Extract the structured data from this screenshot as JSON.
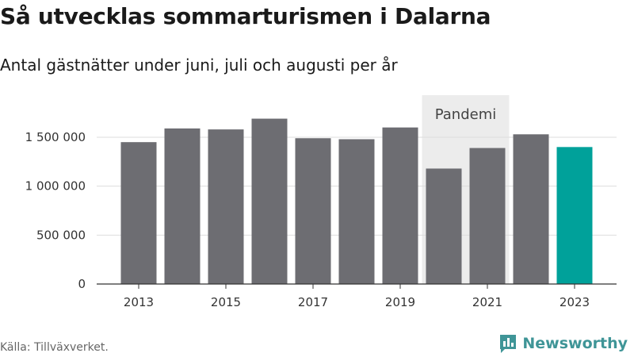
{
  "title": "Så utvecklas sommarturismen i Dalarna",
  "subtitle": "Antal gästnätter under juni, juli och augusti per år",
  "source": "Källa: Tillväxverket.",
  "brand": {
    "name": "Newsworthy",
    "logo_icon": "bar-chart-logo-icon"
  },
  "colors": {
    "bar": "#6d6d72",
    "highlight": "#00a19a",
    "annotation_band": "#ececec",
    "grid": "#dddddd",
    "brand": "#3f9597"
  },
  "chart_data": {
    "type": "bar",
    "categories": [
      "2013",
      "2014",
      "2015",
      "2016",
      "2017",
      "2018",
      "2019",
      "2020",
      "2021",
      "2022",
      "2023"
    ],
    "values": [
      1450000,
      1590000,
      1580000,
      1690000,
      1490000,
      1480000,
      1600000,
      1180000,
      1390000,
      1530000,
      1400000
    ],
    "x_tick_labels": [
      "2013",
      "2015",
      "2017",
      "2019",
      "2021",
      "2023"
    ],
    "y_ticks": [
      0,
      500000,
      1000000,
      1500000
    ],
    "y_tick_labels": [
      "0",
      "500 000",
      "1 000 000",
      "1 500 000"
    ],
    "ylim": [
      0,
      1800000
    ],
    "grid": true,
    "highlight_category": "2023",
    "annotation": {
      "label": "Pandemi",
      "from": "2020",
      "to": "2021"
    },
    "xlabel": "",
    "ylabel": ""
  }
}
